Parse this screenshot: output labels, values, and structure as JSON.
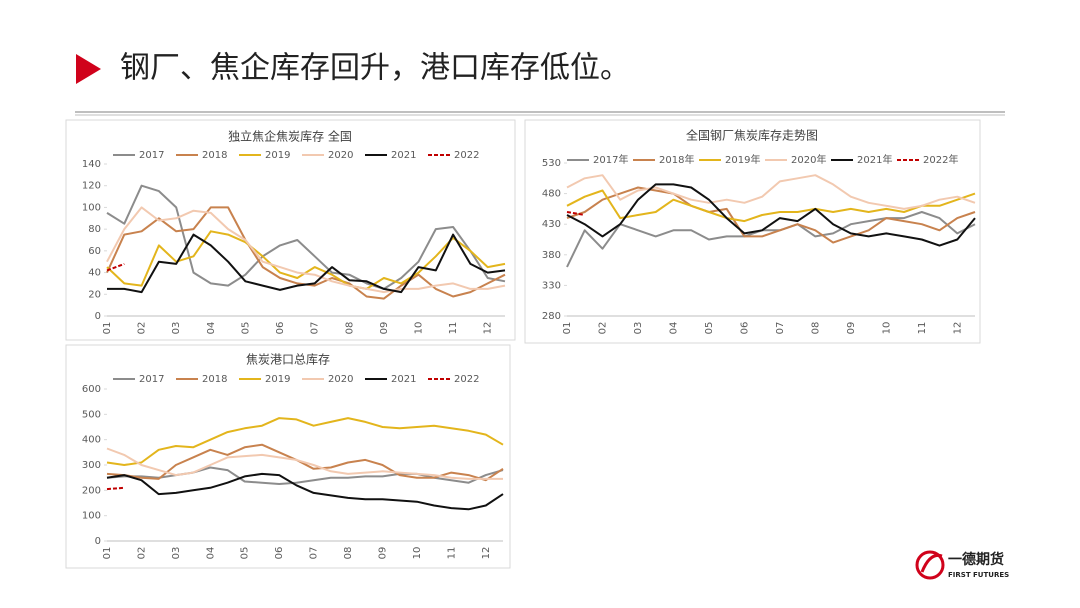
{
  "header": {
    "title": "钢厂、焦企库存回升，港口库存低位。"
  },
  "logo": {
    "name": "一德期货",
    "subtitle": "FIRST FUTURES"
  },
  "chart_data": [
    {
      "type": "line",
      "title": "独立焦企焦炭库存 全国",
      "categories": [
        "01",
        null,
        "02",
        null,
        "03",
        null,
        "04",
        null,
        "05",
        null,
        "06",
        null,
        "07",
        null,
        "08",
        null,
        "09",
        null,
        "10",
        null,
        "11",
        null,
        "12",
        null
      ],
      "ylim": [
        0,
        140
      ],
      "yticks": [
        0,
        20,
        40,
        60,
        80,
        100,
        120,
        140
      ],
      "series": [
        {
          "name": "2017",
          "color": "#8c8c8c",
          "values": [
            95,
            85,
            120,
            115,
            100,
            40,
            30,
            28,
            38,
            55,
            65,
            70,
            55,
            40,
            38,
            30,
            25,
            35,
            50,
            80,
            82,
            60,
            35,
            32
          ]
        },
        {
          "name": "2018",
          "color": "#c8824e",
          "values": [
            40,
            75,
            78,
            90,
            78,
            80,
            100,
            100,
            70,
            45,
            35,
            30,
            28,
            35,
            30,
            18,
            16,
            28,
            38,
            25,
            18,
            22,
            30,
            38
          ]
        },
        {
          "name": "2019",
          "color": "#e3b51c",
          "values": [
            45,
            30,
            28,
            65,
            50,
            55,
            78,
            75,
            68,
            55,
            40,
            35,
            45,
            38,
            28,
            25,
            35,
            30,
            40,
            55,
            72,
            60,
            45,
            48
          ]
        },
        {
          "name": "2020",
          "color": "#f2c9b0",
          "values": [
            50,
            80,
            100,
            88,
            90,
            97,
            95,
            80,
            70,
            50,
            45,
            40,
            38,
            32,
            28,
            25,
            22,
            25,
            25,
            28,
            30,
            25,
            25,
            28
          ]
        },
        {
          "name": "2021",
          "color": "#111111",
          "values": [
            25,
            25,
            22,
            50,
            48,
            75,
            65,
            50,
            32,
            28,
            24,
            28,
            30,
            45,
            33,
            32,
            25,
            22,
            45,
            42,
            75,
            48,
            40,
            42
          ]
        },
        {
          "name": "2022",
          "color": "#c00000",
          "dash": true,
          "values": [
            42,
            48,
            null,
            null,
            null,
            null,
            null,
            null,
            null,
            null,
            null,
            null,
            null,
            null,
            null,
            null,
            null,
            null,
            null,
            null,
            null,
            null,
            null,
            null
          ]
        }
      ]
    },
    {
      "type": "line",
      "title": "全国钢厂焦炭库存走势图",
      "categories": [
        "01",
        null,
        "02",
        null,
        "03",
        null,
        "04",
        null,
        "05",
        null,
        "06",
        null,
        "07",
        null,
        "08",
        null,
        "09",
        null,
        "10",
        null,
        "11",
        null,
        "12",
        null
      ],
      "ylim": [
        280,
        530
      ],
      "yticks": [
        280,
        330,
        380,
        430,
        480,
        530
      ],
      "series": [
        {
          "name": "2017年",
          "color": "#8c8c8c",
          "values": [
            360,
            420,
            390,
            430,
            420,
            410,
            420,
            420,
            405,
            410,
            410,
            420,
            420,
            430,
            410,
            415,
            430,
            435,
            440,
            440,
            450,
            440,
            415,
            430
          ]
        },
        {
          "name": "2018年",
          "color": "#c8824e",
          "values": [
            440,
            450,
            470,
            480,
            490,
            485,
            480,
            460,
            450,
            455,
            410,
            410,
            420,
            430,
            420,
            400,
            410,
            420,
            440,
            435,
            430,
            420,
            440,
            450
          ]
        },
        {
          "name": "2019年",
          "color": "#e3b51c",
          "values": [
            460,
            475,
            485,
            440,
            445,
            450,
            470,
            460,
            450,
            440,
            435,
            445,
            450,
            450,
            455,
            450,
            455,
            450,
            455,
            450,
            460,
            460,
            470,
            480
          ]
        },
        {
          "name": "2020年",
          "color": "#f2c9b0",
          "values": [
            490,
            505,
            510,
            470,
            485,
            490,
            480,
            470,
            465,
            470,
            465,
            475,
            500,
            505,
            510,
            495,
            475,
            465,
            460,
            455,
            460,
            470,
            475,
            465
          ]
        },
        {
          "name": "2021年",
          "color": "#111111",
          "values": [
            445,
            430,
            410,
            430,
            470,
            495,
            495,
            490,
            470,
            440,
            415,
            420,
            440,
            435,
            455,
            430,
            415,
            410,
            415,
            410,
            405,
            395,
            405,
            440
          ]
        },
        {
          "name": "2022年",
          "color": "#c00000",
          "dash": true,
          "values": [
            450,
            445,
            null,
            null,
            null,
            null,
            null,
            null,
            null,
            null,
            null,
            null,
            null,
            null,
            null,
            null,
            null,
            null,
            null,
            null,
            null,
            null,
            null,
            null
          ]
        }
      ]
    },
    {
      "type": "line",
      "title": "焦炭港口总库存",
      "categories": [
        "01",
        null,
        "02",
        null,
        "03",
        null,
        "04",
        null,
        "05",
        null,
        "06",
        null,
        "07",
        null,
        "08",
        null,
        "09",
        null,
        "10",
        null,
        "11",
        null,
        "12",
        null
      ],
      "ylim": [
        0,
        600
      ],
      "yticks": [
        0,
        100,
        200,
        300,
        400,
        500,
        600
      ],
      "series": [
        {
          "name": "2017",
          "color": "#8c8c8c",
          "values": [
            250,
            255,
            255,
            250,
            260,
            270,
            290,
            280,
            235,
            230,
            225,
            230,
            240,
            250,
            250,
            255,
            255,
            265,
            265,
            250,
            240,
            230,
            260,
            280
          ]
        },
        {
          "name": "2018",
          "color": "#c8824e",
          "values": [
            265,
            260,
            250,
            245,
            300,
            330,
            360,
            340,
            370,
            380,
            350,
            320,
            285,
            290,
            310,
            320,
            300,
            260,
            250,
            250,
            270,
            260,
            240,
            285
          ]
        },
        {
          "name": "2019",
          "color": "#e3b51c",
          "values": [
            310,
            300,
            310,
            360,
            375,
            370,
            400,
            430,
            445,
            455,
            485,
            480,
            455,
            470,
            485,
            470,
            450,
            445,
            450,
            455,
            445,
            435,
            420,
            380
          ]
        },
        {
          "name": "2020",
          "color": "#f2c9b0",
          "values": [
            365,
            340,
            300,
            280,
            260,
            270,
            300,
            330,
            335,
            340,
            330,
            320,
            300,
            275,
            265,
            270,
            275,
            270,
            265,
            260,
            250,
            245,
            245,
            245
          ]
        },
        {
          "name": "2021",
          "color": "#111111",
          "values": [
            250,
            260,
            240,
            185,
            190,
            200,
            210,
            230,
            255,
            265,
            260,
            220,
            190,
            180,
            170,
            165,
            165,
            160,
            155,
            140,
            130,
            125,
            140,
            185
          ]
        },
        {
          "name": "2022",
          "color": "#c00000",
          "dash": true,
          "values": [
            205,
            210,
            null,
            null,
            null,
            null,
            null,
            null,
            null,
            null,
            null,
            null,
            null,
            null,
            null,
            null,
            null,
            null,
            null,
            null,
            null,
            null,
            null,
            null
          ]
        }
      ]
    }
  ]
}
